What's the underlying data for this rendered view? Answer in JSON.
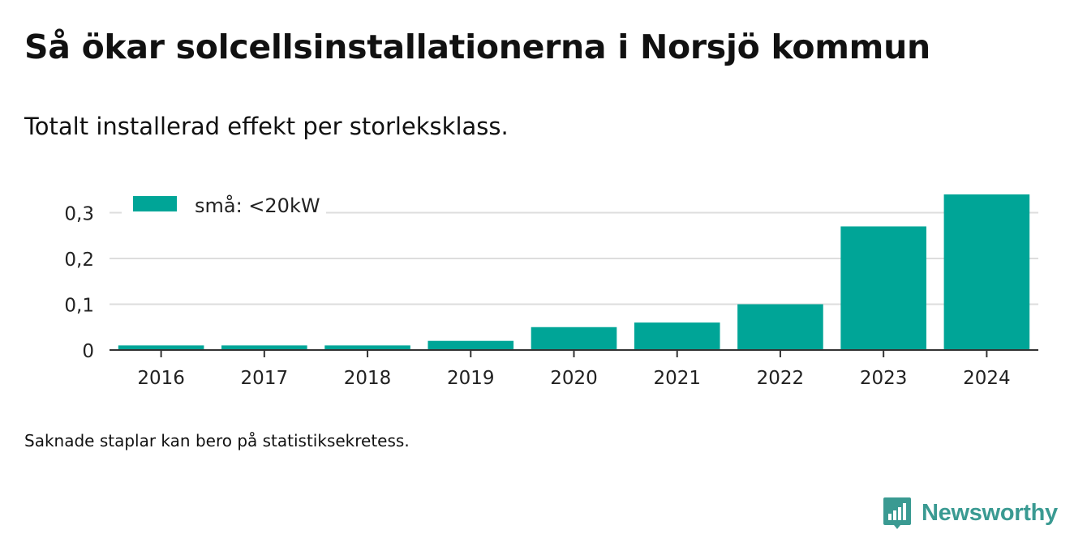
{
  "title": "Så ökar solcellsinstallationerna i Norsjö kommun",
  "subtitle": "Totalt installerad effekt per storleksklass.",
  "footnote": "Saknade staplar kan bero på statistiksekretess.",
  "brand": {
    "name": "Newsworthy",
    "icon": "newsworthy-logo-icon",
    "color": "#3a9a92"
  },
  "chart_data": {
    "type": "bar",
    "categories": [
      "2016",
      "2017",
      "2018",
      "2019",
      "2020",
      "2021",
      "2022",
      "2023",
      "2024"
    ],
    "series": [
      {
        "name": "små: <20kW",
        "color": "#00a597",
        "values": [
          0.01,
          0.01,
          0.01,
          0.02,
          0.05,
          0.06,
          0.1,
          0.27,
          0.34
        ]
      }
    ],
    "yticks": [
      "0",
      "0,1",
      "0,2",
      "0,3"
    ],
    "ytick_values": [
      0,
      0.1,
      0.2,
      0.3
    ],
    "ylim": [
      0,
      0.35
    ],
    "xlabel": "",
    "ylabel": "",
    "grid": true,
    "legend_position": "top-left"
  }
}
